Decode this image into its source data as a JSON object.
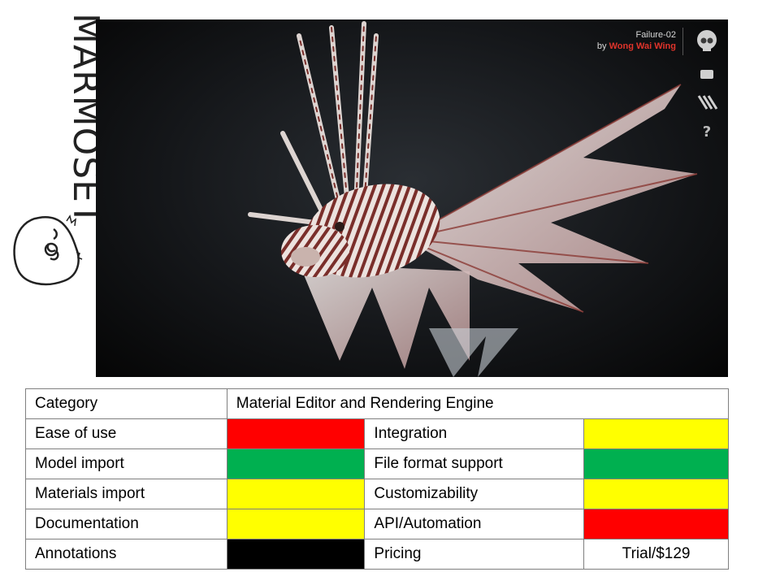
{
  "logo": {
    "wordmark": "MARMOSET"
  },
  "viewer": {
    "scene_title": "Failure-02",
    "by_label": "by",
    "author": "Wong Wai Wing",
    "icons": [
      "skull-icon",
      "fullscreen-icon",
      "layers-icon",
      "help-icon"
    ],
    "help_glyph": "?"
  },
  "colors": {
    "red": "#ff0000",
    "green": "#00b050",
    "yellow": "#ffff00",
    "black": "#000000",
    "author": "#e0342b"
  },
  "table": {
    "category_label": "Category",
    "category_value": "Material Editor and Rendering Engine",
    "rows": [
      {
        "left_label": "Ease of use",
        "left_rating": "red",
        "right_label": "Integration",
        "right_rating": "yellow"
      },
      {
        "left_label": "Model import",
        "left_rating": "green",
        "right_label": "File format support",
        "right_rating": "green"
      },
      {
        "left_label": "Materials import",
        "left_rating": "yellow",
        "right_label": "Customizability",
        "right_rating": "yellow"
      },
      {
        "left_label": "Documentation",
        "left_rating": "yellow",
        "right_label": "API/Automation",
        "right_rating": "red"
      },
      {
        "left_label": "Annotations",
        "left_rating": "black",
        "right_label": "Pricing",
        "right_value": "Trial/$129"
      }
    ]
  }
}
